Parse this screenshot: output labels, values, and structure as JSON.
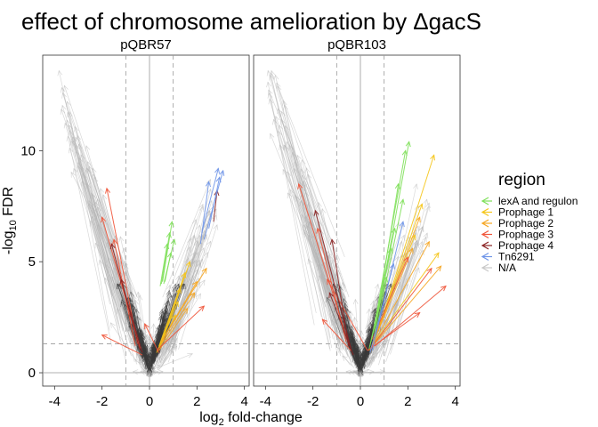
{
  "chart_data": {
    "type": "scatter",
    "title": "effect of chromosome amelioration by ΔgacS",
    "xlabel": "log2 fold-change",
    "ylabel": "-log10 FDR",
    "xlim": [
      -4.5,
      4.2
    ],
    "ylim": [
      -0.6,
      14.3
    ],
    "x_ticks": [
      -4,
      -2,
      0,
      2,
      4
    ],
    "y_ticks": [
      0,
      5,
      10
    ],
    "vlines": [
      -1,
      0,
      1
    ],
    "hline_dashed": 1.3,
    "legend": {
      "title": "region",
      "placement": "right",
      "entries": [
        {
          "label": "lexA and regulon",
          "color": "#7fe05a"
        },
        {
          "label": "Prophage 1",
          "color": "#f5c518"
        },
        {
          "label": "Prophage 2",
          "color": "#f5a623"
        },
        {
          "label": "Prophage 3",
          "color": "#f0553a"
        },
        {
          "label": "Prophage 4",
          "color": "#8b2323"
        },
        {
          "label": "Tn6291",
          "color": "#6f95e8"
        },
        {
          "label": "N/A",
          "color": "#c8c8c8"
        }
      ]
    },
    "panels": [
      {
        "name": "pQBR57",
        "series": [
          {
            "name": "lexA and regulon",
            "segments": [
              [
                0.55,
                4.1,
                0.95,
                6.8
              ],
              [
                0.5,
                4.0,
                0.85,
                6.3
              ],
              [
                0.6,
                4.0,
                1.05,
                6.0
              ],
              [
                0.65,
                4.1,
                0.9,
                5.4
              ],
              [
                0.45,
                3.9,
                0.75,
                5.8
              ]
            ]
          },
          {
            "name": "Prophage 1",
            "segments": [
              [
                0.4,
                1.2,
                1.5,
                4.5
              ],
              [
                0.35,
                1.0,
                1.3,
                3.8
              ],
              [
                0.3,
                0.9,
                1.2,
                3.2
              ],
              [
                0.5,
                1.3,
                1.7,
                5.0
              ],
              [
                0.4,
                1.1,
                1.1,
                2.6
              ]
            ]
          },
          {
            "name": "Prophage 2",
            "segments": [
              [
                0.5,
                1.4,
                2.4,
                4.7
              ],
              [
                0.45,
                1.2,
                1.9,
                3.6
              ],
              [
                0.4,
                1.0,
                1.6,
                2.9
              ],
              [
                0.55,
                1.5,
                2.0,
                4.1
              ]
            ]
          },
          {
            "name": "Prophage 3",
            "segments": [
              [
                -0.5,
                1.3,
                -1.8,
                8.3
              ],
              [
                -0.4,
                1.1,
                -2.0,
                7.0
              ],
              [
                0.3,
                1.0,
                2.3,
                3.0
              ],
              [
                -0.6,
                1.2,
                -1.5,
                6.0
              ],
              [
                -0.3,
                0.8,
                -2.0,
                1.7
              ],
              [
                0.4,
                0.9,
                -0.2,
                2.2
              ]
            ]
          },
          {
            "name": "Prophage 4",
            "segments": [
              [
                -0.4,
                1.0,
                -1.6,
                5.8
              ],
              [
                2.7,
                6.8,
                2.85,
                8.2
              ],
              [
                -0.3,
                0.9,
                -1.2,
                4.2
              ]
            ]
          },
          {
            "name": "Tn6291",
            "segments": [
              [
                2.2,
                6.3,
                2.9,
                9.2
              ],
              [
                2.3,
                6.0,
                3.1,
                9.1
              ],
              [
                2.15,
                5.8,
                2.5,
                8.6
              ],
              [
                2.5,
                6.5,
                2.95,
                8.8
              ]
            ]
          }
        ]
      },
      {
        "name": "pQBR103",
        "series": [
          {
            "name": "lexA and regulon",
            "segments": [
              [
                0.5,
                1.6,
                1.9,
                10.0
              ],
              [
                0.6,
                1.8,
                1.6,
                8.5
              ],
              [
                0.55,
                1.5,
                2.05,
                10.4
              ],
              [
                0.4,
                1.2,
                1.45,
                6.5
              ],
              [
                0.45,
                1.4,
                1.3,
                5.6
              ],
              [
                0.6,
                1.6,
                1.8,
                7.8
              ],
              [
                0.35,
                1.0,
                1.1,
                4.3
              ]
            ]
          },
          {
            "name": "Prophage 1",
            "segments": [
              [
                0.6,
                1.4,
                3.1,
                9.8
              ],
              [
                0.5,
                1.2,
                2.6,
                7.6
              ],
              [
                0.55,
                1.3,
                3.3,
                5.4
              ],
              [
                0.45,
                1.1,
                2.3,
                6.2
              ]
            ]
          },
          {
            "name": "Prophage 2",
            "segments": [
              [
                0.5,
                1.2,
                2.5,
                7.0
              ],
              [
                0.4,
                1.0,
                2.2,
                5.6
              ],
              [
                0.6,
                1.3,
                3.4,
                4.8
              ],
              [
                0.45,
                1.1,
                2.9,
                5.9
              ]
            ]
          },
          {
            "name": "Prophage 3",
            "segments": [
              [
                -0.5,
                1.3,
                -2.6,
                8.5
              ],
              [
                -0.6,
                1.4,
                -1.8,
                6.5
              ],
              [
                0.5,
                1.2,
                3.0,
                4.7
              ],
              [
                0.6,
                1.2,
                3.6,
                3.9
              ],
              [
                0.3,
                1.0,
                -1.4,
                4.2
              ],
              [
                0.5,
                1.5,
                2.0,
                5.2
              ],
              [
                -0.4,
                1.0,
                -1.6,
                2.4
              ],
              [
                0.3,
                1.0,
                2.5,
                2.7
              ]
            ]
          },
          {
            "name": "Prophage 4",
            "segments": [
              [
                -0.5,
                1.2,
                -1.2,
                6.0
              ],
              [
                -0.4,
                1.1,
                -1.9,
                7.3
              ],
              [
                -0.3,
                0.8,
                -1.3,
                3.6
              ]
            ]
          },
          {
            "name": "Tn6291",
            "segments": [
              [
                0.5,
                1.0,
                1.8,
                6.8
              ],
              [
                0.4,
                0.9,
                1.4,
                4.9
              ]
            ]
          }
        ]
      }
    ]
  }
}
